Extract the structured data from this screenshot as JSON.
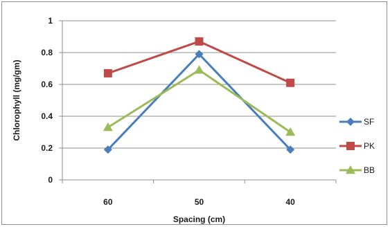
{
  "chart_data": {
    "type": "line",
    "title": "",
    "xlabel": "Spacing (cm)",
    "ylabel": "Chlorophyll (mg/gm)",
    "categories": [
      "60",
      "50",
      "40"
    ],
    "ylim": [
      0,
      1
    ],
    "yticks": [
      "0",
      "0.2",
      "0.4",
      "0.6",
      "0.8",
      "1"
    ],
    "grid": true,
    "legend_position": "right",
    "series": [
      {
        "name": "SF",
        "values": [
          0.19,
          0.79,
          0.19
        ],
        "color": "#4a7ebb",
        "marker": "diamond"
      },
      {
        "name": "PK",
        "values": [
          0.67,
          0.87,
          0.61
        ],
        "color": "#be4b48",
        "marker": "square"
      },
      {
        "name": "BB",
        "values": [
          0.33,
          0.69,
          0.3
        ],
        "color": "#9bbb59",
        "marker": "triangle"
      }
    ]
  }
}
